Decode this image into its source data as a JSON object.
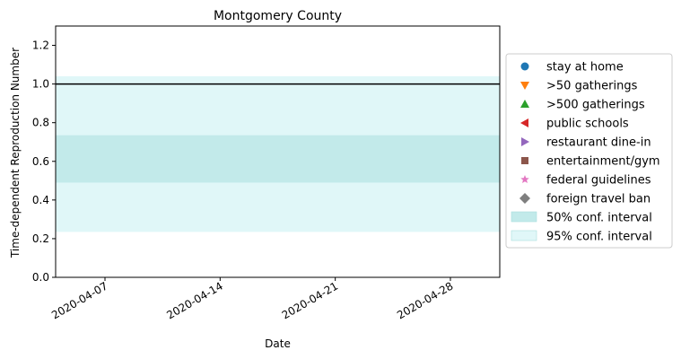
{
  "chart_data": {
    "type": "line",
    "title": "Montgomery County",
    "xlabel": "Date",
    "ylabel": "Time-dependent Reproduction Number",
    "x_range": [
      "2020-04-04",
      "2020-05-01"
    ],
    "ylim": [
      0,
      1.3
    ],
    "x_ticks": [
      "2020-04-07",
      "2020-04-14",
      "2020-04-21",
      "2020-04-28"
    ],
    "y_ticks": [
      "0.0",
      "0.2",
      "0.4",
      "0.6",
      "0.8",
      "1.0",
      "1.2"
    ],
    "y_tick_values": [
      0,
      0.2,
      0.4,
      0.6,
      0.8,
      1.0,
      1.2
    ],
    "reference_line": 1.0,
    "ci50": [
      0.49,
      0.735
    ],
    "ci95": [
      0.235,
      1.04
    ],
    "grid": false,
    "legend_position": "right outside",
    "legend": [
      {
        "label": "stay at home",
        "marker": "circle",
        "color": "#1f77b4"
      },
      {
        "label": ">50 gatherings",
        "marker": "triangle-down",
        "color": "#ff7f0e"
      },
      {
        "label": ">500 gatherings",
        "marker": "triangle-up",
        "color": "#2ca02c"
      },
      {
        "label": "public schools",
        "marker": "triangle-left",
        "color": "#d62728"
      },
      {
        "label": "restaurant dine-in",
        "marker": "triangle-right",
        "color": "#9467bd"
      },
      {
        "label": "entertainment/gym",
        "marker": "square",
        "color": "#8c564b"
      },
      {
        "label": "federal guidelines",
        "marker": "star",
        "color": "#e377c2"
      },
      {
        "label": "foreign travel ban",
        "marker": "diamond",
        "color": "#7f7f7f"
      },
      {
        "label": "50% conf. interval",
        "marker": "patch",
        "color": "#c2eaea"
      },
      {
        "label": "95% conf. interval",
        "marker": "patch",
        "color": "#e0f7f8"
      }
    ]
  }
}
